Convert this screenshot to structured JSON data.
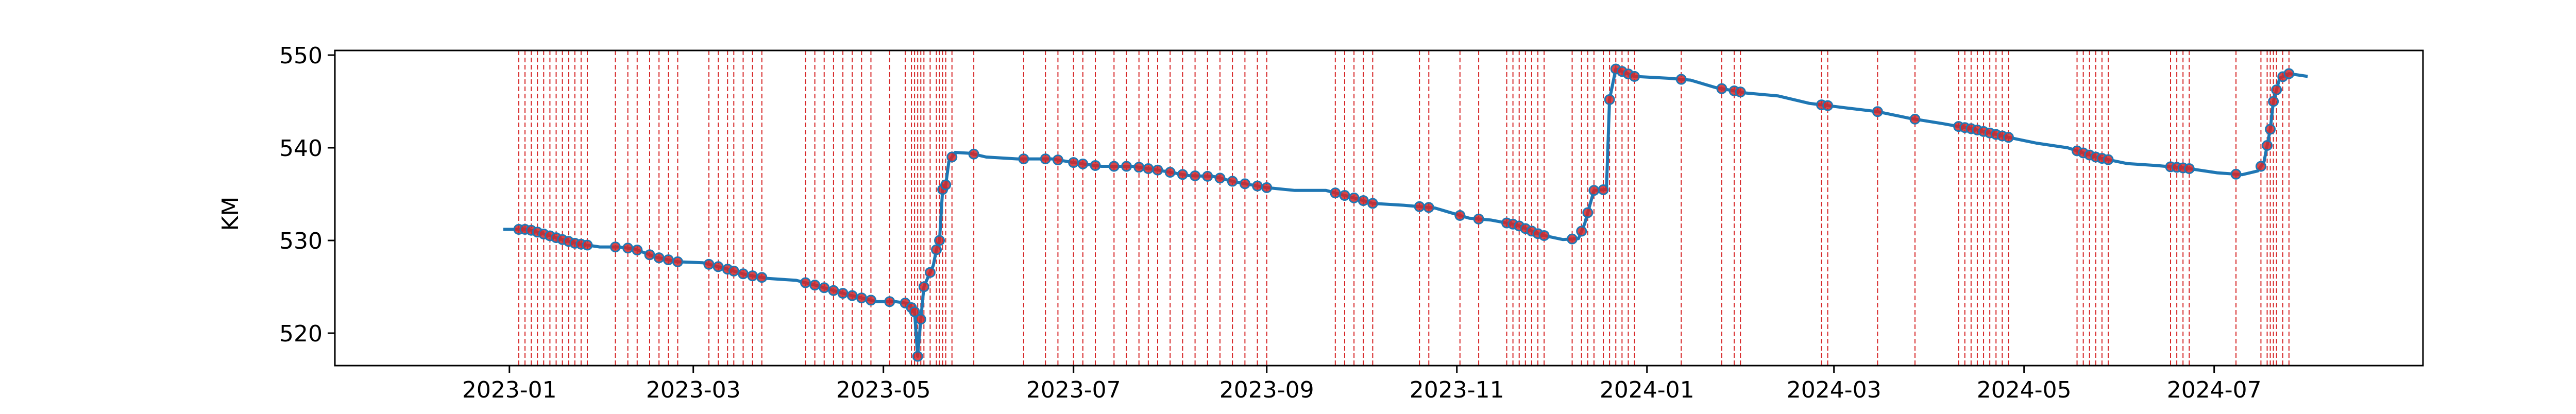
{
  "chart_data": {
    "type": "line",
    "title": "",
    "xlabel": "",
    "ylabel": "KM",
    "xlim": [
      "2022-11-06",
      "2024-09-06"
    ],
    "ylim": [
      516.5,
      550.5
    ],
    "xticks": [
      "2023-01",
      "2023-03",
      "2023-05",
      "2023-07",
      "2023-09",
      "2023-11",
      "2024-01",
      "2024-03",
      "2024-05",
      "2024-07"
    ],
    "yticks": [
      520,
      530,
      540,
      550
    ],
    "grid": false,
    "legend": "none",
    "series": [
      {
        "kind": "line",
        "color": "#1f77b4",
        "points": [
          [
            "2022-12-30",
            531.2
          ],
          [
            "2023-01-07",
            531.2
          ],
          [
            "2023-01-15",
            530.4
          ],
          [
            "2023-01-22",
            529.7
          ],
          [
            "2023-01-30",
            529.3
          ],
          [
            "2023-02-05",
            529.3
          ],
          [
            "2023-02-10",
            529.1
          ],
          [
            "2023-02-17",
            528.2
          ],
          [
            "2023-02-24",
            527.7
          ],
          [
            "2023-03-04",
            527.6
          ],
          [
            "2023-03-11",
            527.0
          ],
          [
            "2023-03-18",
            526.3
          ],
          [
            "2023-03-25",
            525.9
          ],
          [
            "2023-04-03",
            525.7
          ],
          [
            "2023-04-10",
            525.1
          ],
          [
            "2023-04-18",
            524.3
          ],
          [
            "2023-04-24",
            523.8
          ],
          [
            "2023-04-29",
            523.4
          ],
          [
            "2023-05-05",
            523.4
          ],
          [
            "2023-05-09",
            523.2
          ],
          [
            "2023-05-11",
            522.3
          ],
          [
            "2023-05-12",
            517.5
          ],
          [
            "2023-05-13",
            521.5
          ],
          [
            "2023-05-14",
            525.0
          ],
          [
            "2023-05-15",
            525.8
          ],
          [
            "2023-05-17",
            527.3
          ],
          [
            "2023-05-18",
            529.0
          ],
          [
            "2023-05-19",
            530.0
          ],
          [
            "2023-05-20",
            535.5
          ],
          [
            "2023-05-21",
            536.0
          ],
          [
            "2023-05-22",
            538.5
          ],
          [
            "2023-05-24",
            539.5
          ],
          [
            "2023-05-29",
            539.4
          ],
          [
            "2023-06-03",
            539.0
          ],
          [
            "2023-06-13",
            538.8
          ],
          [
            "2023-06-24",
            538.8
          ],
          [
            "2023-07-03",
            538.3
          ],
          [
            "2023-07-10",
            538.0
          ],
          [
            "2023-07-20",
            538.0
          ],
          [
            "2023-07-28",
            537.6
          ],
          [
            "2023-08-07",
            537.0
          ],
          [
            "2023-08-15",
            536.9
          ],
          [
            "2023-08-22",
            536.3
          ],
          [
            "2023-09-01",
            535.7
          ],
          [
            "2023-09-10",
            535.4
          ],
          [
            "2023-09-20",
            535.4
          ],
          [
            "2023-09-30",
            534.5
          ],
          [
            "2023-10-05",
            534.0
          ],
          [
            "2023-10-15",
            533.8
          ],
          [
            "2023-10-25",
            533.5
          ],
          [
            "2023-11-05",
            532.4
          ],
          [
            "2023-11-12",
            532.2
          ],
          [
            "2023-11-20",
            531.7
          ],
          [
            "2023-11-28",
            530.6
          ],
          [
            "2023-12-05",
            530.1
          ],
          [
            "2023-12-10",
            530.2
          ],
          [
            "2023-12-12",
            531.8
          ],
          [
            "2023-12-15",
            535.4
          ],
          [
            "2023-12-19",
            535.5
          ],
          [
            "2023-12-20",
            545.2
          ],
          [
            "2023-12-22",
            548.5
          ],
          [
            "2023-12-28",
            547.7
          ],
          [
            "2024-01-08",
            547.5
          ],
          [
            "2024-01-15",
            547.3
          ],
          [
            "2024-01-23",
            546.5
          ],
          [
            "2024-02-02",
            545.9
          ],
          [
            "2024-02-12",
            545.6
          ],
          [
            "2024-02-22",
            544.8
          ],
          [
            "2024-03-05",
            544.3
          ],
          [
            "2024-03-15",
            543.9
          ],
          [
            "2024-03-25",
            543.2
          ],
          [
            "2024-04-05",
            542.6
          ],
          [
            "2024-04-15",
            542.0
          ],
          [
            "2024-04-25",
            541.2
          ],
          [
            "2024-05-05",
            540.5
          ],
          [
            "2024-05-15",
            540.0
          ],
          [
            "2024-05-24",
            539.0
          ],
          [
            "2024-06-03",
            538.3
          ],
          [
            "2024-06-12",
            538.1
          ],
          [
            "2024-06-22",
            537.8
          ],
          [
            "2024-07-02",
            537.3
          ],
          [
            "2024-07-10",
            537.1
          ],
          [
            "2024-07-15",
            537.5
          ],
          [
            "2024-07-17",
            538.5
          ],
          [
            "2024-07-19",
            542.0
          ],
          [
            "2024-07-20",
            545.0
          ],
          [
            "2024-07-22",
            547.5
          ],
          [
            "2024-07-25",
            548.0
          ],
          [
            "2024-07-31",
            547.7
          ]
        ]
      },
      {
        "kind": "scatter",
        "color": "#d62728",
        "edgecolor": "#1f77b4",
        "dates": [
          "2023-01-04",
          "2023-01-06",
          "2023-01-08",
          "2023-01-10",
          "2023-01-12",
          "2023-01-14",
          "2023-01-16",
          "2023-01-18",
          "2023-01-20",
          "2023-01-22",
          "2023-01-24",
          "2023-01-26",
          "2023-02-04",
          "2023-02-08",
          "2023-02-11",
          "2023-02-15",
          "2023-02-18",
          "2023-02-21",
          "2023-02-24",
          "2023-03-06",
          "2023-03-09",
          "2023-03-12",
          "2023-03-14",
          "2023-03-17",
          "2023-03-20",
          "2023-03-23",
          "2023-04-06",
          "2023-04-09",
          "2023-04-12",
          "2023-04-15",
          "2023-04-18",
          "2023-04-21",
          "2023-04-24",
          "2023-04-27",
          "2023-05-03",
          "2023-05-08",
          "2023-05-10",
          "2023-05-11",
          "2023-05-12",
          "2023-05-13",
          "2023-05-14",
          "2023-05-16",
          "2023-05-18",
          "2023-05-19",
          "2023-05-20",
          "2023-05-21",
          "2023-05-23",
          "2023-05-30",
          "2023-06-15",
          "2023-06-22",
          "2023-06-26",
          "2023-07-01",
          "2023-07-04",
          "2023-07-08",
          "2023-07-14",
          "2023-07-18",
          "2023-07-22",
          "2023-07-25",
          "2023-07-28",
          "2023-08-01",
          "2023-08-05",
          "2023-08-09",
          "2023-08-13",
          "2023-08-17",
          "2023-08-21",
          "2023-08-25",
          "2023-08-29",
          "2023-09-01",
          "2023-09-23",
          "2023-09-26",
          "2023-09-29",
          "2023-10-02",
          "2023-10-05",
          "2023-10-20",
          "2023-10-23",
          "2023-11-02",
          "2023-11-08",
          "2023-11-17",
          "2023-11-19",
          "2023-11-21",
          "2023-11-23",
          "2023-11-25",
          "2023-11-27",
          "2023-11-29",
          "2023-12-08",
          "2023-12-11",
          "2023-12-13",
          "2023-12-15",
          "2023-12-18",
          "2023-12-20",
          "2023-12-22",
          "2023-12-24",
          "2023-12-26",
          "2023-12-28",
          "2024-01-12",
          "2024-01-25",
          "2024-01-29",
          "2024-01-31",
          "2024-02-26",
          "2024-02-28",
          "2024-03-15",
          "2024-03-27",
          "2024-04-10",
          "2024-04-12",
          "2024-04-14",
          "2024-04-16",
          "2024-04-18",
          "2024-04-20",
          "2024-04-22",
          "2024-04-24",
          "2024-04-26",
          "2024-05-18",
          "2024-05-20",
          "2024-05-22",
          "2024-05-24",
          "2024-05-26",
          "2024-05-28",
          "2024-06-17",
          "2024-06-19",
          "2024-06-21",
          "2024-06-23",
          "2024-07-08",
          "2024-07-16",
          "2024-07-18",
          "2024-07-19",
          "2024-07-20",
          "2024-07-21",
          "2024-07-23",
          "2024-07-25"
        ]
      }
    ]
  }
}
